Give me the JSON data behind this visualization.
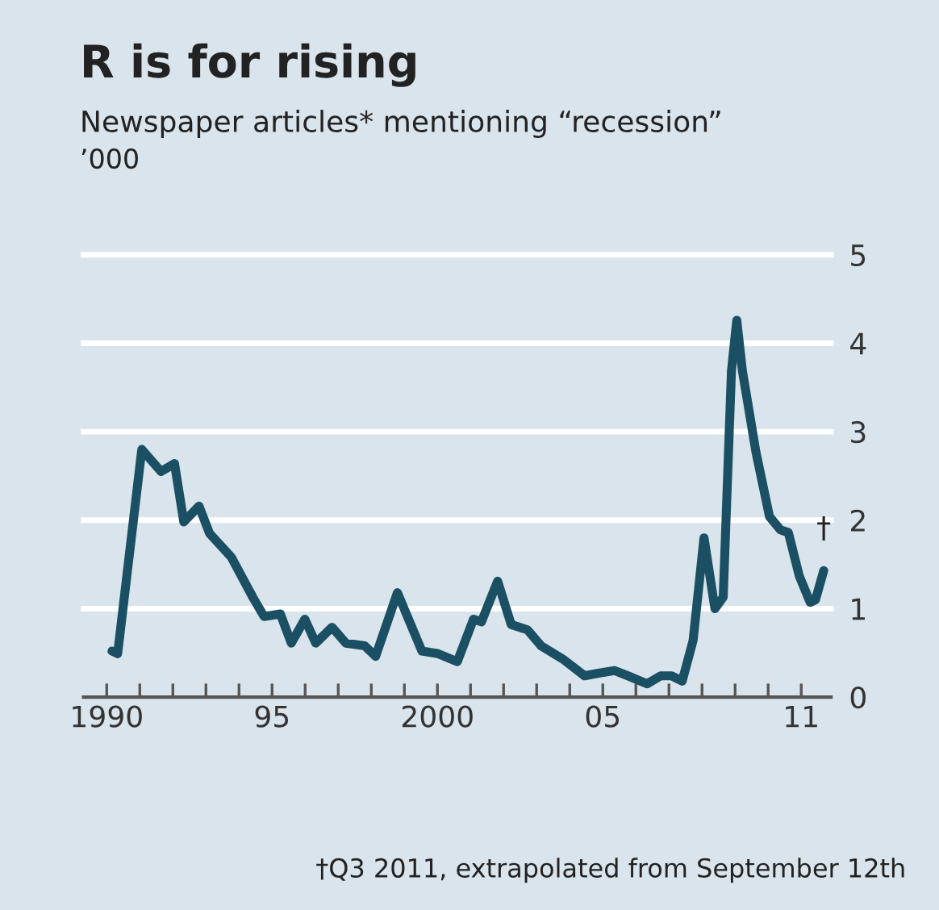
{
  "chart_data": {
    "type": "line",
    "title": "R is for rising",
    "subtitle": "Newspaper articles* mentioning “recession”",
    "ylabel": "’000",
    "x": [
      1990.16,
      1990.33,
      1991.06,
      1991.64,
      1992.05,
      1992.33,
      1992.79,
      1993.11,
      1993.77,
      1994.43,
      1994.76,
      1995.25,
      1995.58,
      1995.99,
      1996.32,
      1996.81,
      1997.23,
      1997.8,
      1998.13,
      1998.79,
      1999.53,
      2000.02,
      2000.6,
      2001.09,
      2001.33,
      2001.82,
      2002.23,
      2002.72,
      2003.13,
      2003.79,
      2004.45,
      2004.86,
      2005.35,
      2005.76,
      2006.34,
      2006.75,
      2007.08,
      2007.4,
      2007.73,
      2008.06,
      2008.39,
      2008.64,
      2008.89,
      2009.05,
      2009.22,
      2009.63,
      2010.04,
      2010.37,
      2010.61,
      2010.94,
      2011.27,
      2011.43,
      2011.68
    ],
    "series": [
      {
        "color": "#1b4f63",
        "values": [
          0.52,
          0.49,
          2.8,
          2.55,
          2.64,
          1.98,
          2.16,
          1.85,
          1.58,
          1.12,
          0.91,
          0.94,
          0.61,
          0.88,
          0.61,
          0.79,
          0.61,
          0.58,
          0.46,
          1.18,
          0.52,
          0.49,
          0.4,
          0.88,
          0.85,
          1.31,
          0.82,
          0.76,
          0.58,
          0.43,
          0.24,
          0.27,
          0.3,
          0.24,
          0.15,
          0.24,
          0.24,
          0.18,
          0.64,
          1.8,
          1.0,
          1.13,
          3.69,
          4.26,
          3.69,
          2.77,
          2.04,
          1.89,
          1.86,
          1.37,
          1.07,
          1.1,
          1.43
        ]
      }
    ],
    "xlim": [
      1989.3,
      2011.9
    ],
    "ylim": [
      0,
      5
    ],
    "xticks": [
      1990,
      {
        "value": 1991,
        "label": null
      },
      {
        "value": 1992,
        "label": null
      },
      {
        "value": 1993,
        "label": null
      },
      {
        "value": 1994,
        "label": null
      },
      {
        "value": 1995,
        "label": "95"
      },
      {
        "value": 1996,
        "label": null
      },
      {
        "value": 1997,
        "label": null
      },
      {
        "value": 1998,
        "label": null
      },
      {
        "value": 1999,
        "label": null
      },
      2000,
      {
        "value": 2001,
        "label": null
      },
      {
        "value": 2002,
        "label": null
      },
      {
        "value": 2003,
        "label": null
      },
      {
        "value": 2004,
        "label": null
      },
      {
        "value": 2005,
        "label": "05"
      },
      {
        "value": 2006,
        "label": null
      },
      {
        "value": 2007,
        "label": null
      },
      {
        "value": 2008,
        "label": null
      },
      {
        "value": 2009,
        "label": null
      },
      {
        "value": 2010,
        "label": null
      },
      {
        "value": 2011,
        "label": "11"
      }
    ],
    "yticks": [
      0,
      1,
      2,
      3,
      4,
      5
    ],
    "grid": "y",
    "marker": "none",
    "line_style": "solid",
    "legend": false,
    "annotations": [
      {
        "text": "†",
        "x": 2011.68,
        "y": 1.43
      },
      "†Q3 2011, extrapolated from September 12th"
    ]
  }
}
